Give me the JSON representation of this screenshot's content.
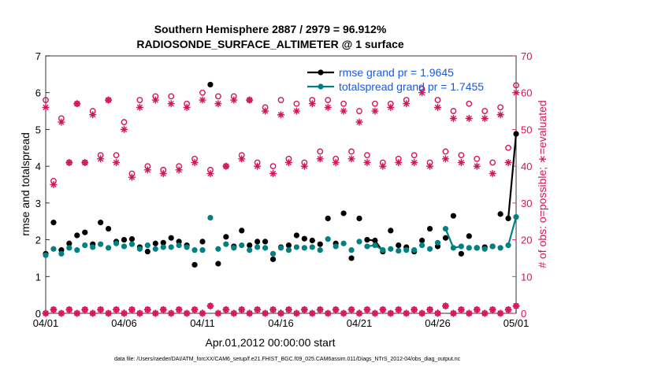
{
  "chart_data": {
    "type": "line",
    "title": "Southern Hemisphere 2887 / 2979 = 96.912%",
    "subtitle": "RADIOSONDE_SURFACE_ALTIMETER @ 1 surface",
    "xlabel": "Apr.01,2012 00:00:00 start",
    "ylabel": "rmse and totalspread",
    "ylabel_right": "# of obs: o=possible; ∗=evaluated",
    "x_tick_labels": [
      "04/01",
      "04/06",
      "04/11",
      "04/16",
      "04/21",
      "04/26",
      "05/01"
    ],
    "x_tick_values": [
      0,
      5,
      10,
      15,
      20,
      25,
      30
    ],
    "xlim": [
      0,
      30
    ],
    "ylim": [
      0,
      7
    ],
    "ylim_right": [
      0,
      70
    ],
    "y_ticks": [
      0,
      1,
      2,
      3,
      4,
      5,
      6,
      7
    ],
    "y_ticks_right": [
      0,
      10,
      20,
      30,
      40,
      50,
      60,
      70
    ],
    "footer": "data file: /Users/raeder/DAI/ATM_forcXX/CAM6_setup/f.e21.FHIST_BGC.f09_025.CAM6assim.011/Diags_NTrS_2012-04/obs_diag_output.nc",
    "legend": [
      {
        "name": "rmse grand pr = 1.9645",
        "color": "#000000"
      },
      {
        "name": "totalspread grand pr = 1.7455",
        "color": "#008080"
      }
    ],
    "x": [
      0,
      0.5,
      1,
      1.5,
      2,
      2.5,
      3,
      3.5,
      4,
      4.5,
      5,
      5.5,
      6,
      6.5,
      7,
      7.5,
      8,
      8.5,
      9,
      9.5,
      10,
      10.5,
      11,
      11.5,
      12,
      12.5,
      13,
      13.5,
      14,
      14.5,
      15,
      15.5,
      16,
      16.5,
      17,
      17.5,
      18,
      18.5,
      19,
      19.5,
      20,
      20.5,
      21,
      21.5,
      22,
      22.5,
      23,
      23.5,
      24,
      24.5,
      25,
      25.5,
      26,
      26.5,
      27,
      27.5,
      28,
      28.5,
      29,
      29.5,
      30
    ],
    "series": [
      {
        "name": "rmse",
        "color": "#000000",
        "values": [
          1.62,
          2.47,
          1.72,
          1.9,
          2.12,
          2.2,
          1.88,
          2.47,
          2.3,
          1.95,
          2.0,
          2.02,
          1.8,
          1.68,
          1.9,
          1.92,
          2.05,
          1.95,
          1.85,
          1.32,
          1.95,
          6.22,
          1.35,
          2.08,
          1.82,
          2.25,
          1.85,
          1.95,
          1.95,
          1.47,
          1.8,
          1.85,
          2.12,
          2.03,
          1.98,
          1.88,
          2.58,
          1.9,
          2.72,
          1.5,
          2.58,
          2.0,
          1.98,
          1.68,
          2.25,
          1.85,
          1.8,
          1.68,
          1.98,
          2.3,
          1.82,
          2.05,
          2.65,
          1.62,
          2.1,
          1.78,
          1.8,
          1.82,
          2.7,
          2.58,
          4.88
        ],
        "connected": [
          [
            20.5,
            21.5
          ],
          [
            29.5,
            30
          ]
        ]
      },
      {
        "name": "totalspread",
        "color": "#008080",
        "values": [
          1.58,
          1.75,
          1.62,
          1.78,
          1.72,
          1.85,
          1.8,
          1.88,
          1.78,
          1.9,
          1.82,
          1.88,
          1.75,
          1.85,
          1.75,
          1.8,
          1.8,
          1.85,
          1.8,
          1.72,
          1.72,
          2.6,
          1.75,
          1.88,
          1.78,
          1.85,
          1.72,
          1.8,
          1.78,
          1.62,
          1.78,
          1.72,
          1.8,
          1.78,
          1.8,
          1.72,
          2.02,
          1.82,
          1.9,
          1.72,
          1.95,
          1.82,
          1.85,
          1.72,
          1.75,
          1.7,
          1.72,
          1.72,
          1.85,
          1.75,
          1.92,
          2.3,
          1.78,
          1.82,
          1.78,
          1.78,
          1.75,
          1.82,
          1.78,
          1.85,
          2.62
        ],
        "connected": [
          [
            20.5,
            21.5
          ],
          [
            25.5,
            26.5
          ],
          [
            29.5,
            30
          ]
        ]
      }
    ],
    "obs_possible": [
      58,
      36,
      53,
      41,
      57,
      41,
      55,
      43,
      58,
      43,
      52,
      38,
      58,
      40,
      59,
      39,
      59,
      40,
      57,
      42,
      60,
      39,
      59,
      40,
      59,
      43,
      58,
      41,
      56,
      40,
      58,
      42,
      57,
      41,
      58,
      44,
      58,
      42,
      57,
      44,
      55,
      43,
      57,
      41,
      57,
      42,
      58,
      43,
      61,
      41,
      58,
      44,
      55,
      43,
      57,
      42,
      55,
      41,
      56,
      45,
      62
    ],
    "obs_evaluated": [
      56,
      35,
      52,
      41,
      57,
      41,
      54,
      42,
      58,
      41,
      50,
      37,
      56,
      39,
      58,
      38,
      57,
      39,
      56,
      41,
      58,
      38,
      57,
      40,
      58,
      42,
      58,
      40,
      55,
      38,
      54,
      41,
      55,
      40,
      57,
      42,
      56,
      41,
      55,
      42,
      52,
      41,
      55,
      40,
      56,
      41,
      57,
      41,
      60,
      40,
      56,
      42,
      53,
      41,
      53,
      40,
      53,
      38,
      54,
      41,
      60
    ],
    "obs_possible_small": [
      0,
      1,
      0,
      1,
      0,
      1,
      0,
      1,
      0,
      1,
      0,
      1,
      0,
      1,
      0,
      1,
      0,
      1,
      0,
      1,
      0,
      2,
      0,
      1,
      0,
      1,
      0,
      1,
      0,
      1,
      0,
      1,
      0,
      1,
      0,
      1,
      0,
      1,
      0,
      1,
      0,
      1,
      0,
      1,
      0,
      1,
      0,
      1,
      0,
      1,
      0,
      2,
      0,
      1,
      0,
      1,
      0,
      1,
      0,
      1,
      2
    ],
    "obs_evaluated_small": [
      0,
      1,
      0,
      1,
      0,
      1,
      0,
      1,
      0,
      1,
      0,
      1,
      0,
      1,
      0,
      1,
      0,
      1,
      0,
      1,
      0,
      2,
      0,
      1,
      0,
      1,
      0,
      1,
      0,
      1,
      0,
      1,
      0,
      1,
      0,
      1,
      0,
      1,
      0,
      1,
      0,
      1,
      0,
      1,
      0,
      1,
      0,
      1,
      0,
      1,
      0,
      2,
      0,
      1,
      0,
      1,
      0,
      1,
      0,
      1,
      2
    ],
    "colors": {
      "obs": "#d4145a",
      "rmse": "#000000",
      "spread": "#008080",
      "legend_text": "#1a5ad9"
    }
  }
}
